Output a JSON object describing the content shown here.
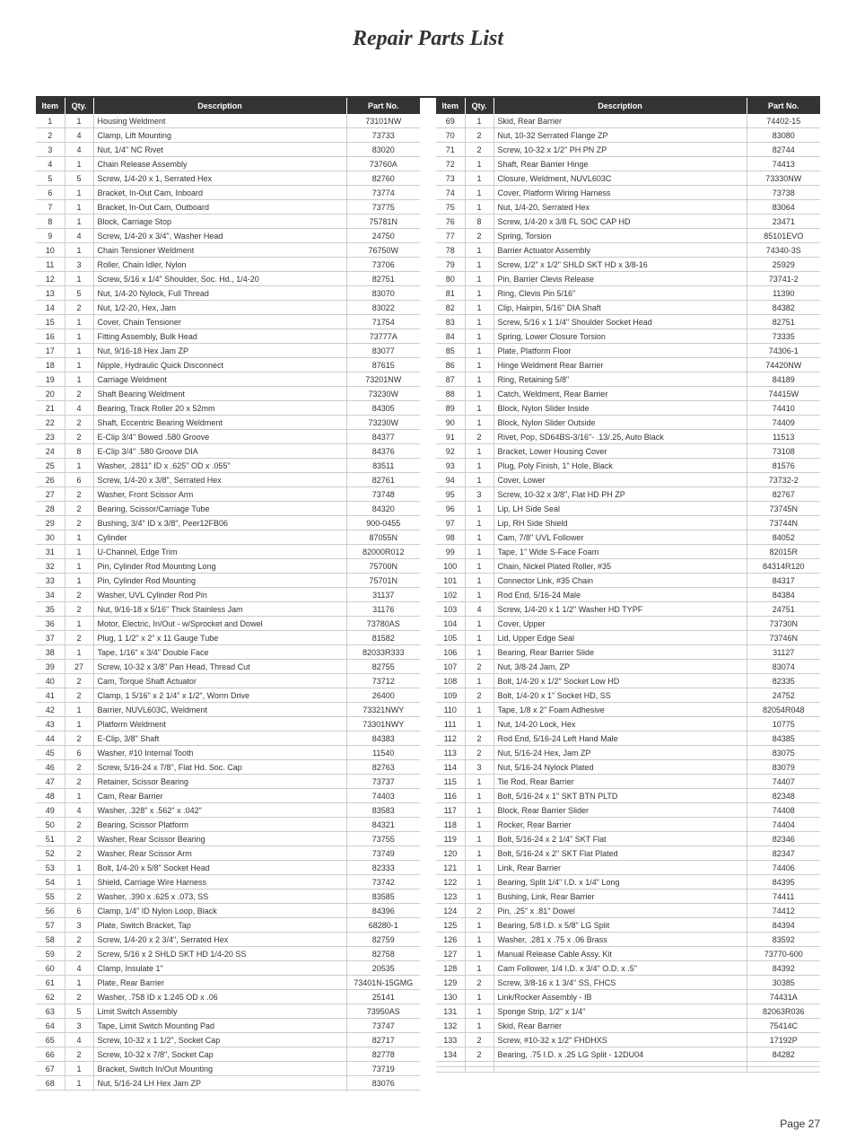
{
  "page_title": "Repair Parts List",
  "page_number": "Page 27",
  "headers": {
    "item": "Item",
    "qty": "Qty.",
    "description": "Description",
    "part_no": "Part No."
  },
  "left": [
    {
      "item": "1",
      "qty": "1",
      "desc": "Housing Weldment",
      "part": "73101NW"
    },
    {
      "item": "2",
      "qty": "4",
      "desc": "Clamp, Lift Mounting",
      "part": "73733"
    },
    {
      "item": "3",
      "qty": "4",
      "desc": "Nut, 1/4\" NC Rivet",
      "part": "83020"
    },
    {
      "item": "4",
      "qty": "1",
      "desc": "Chain Release Assembly",
      "part": "73760A"
    },
    {
      "item": "5",
      "qty": "5",
      "desc": "Screw, 1/4-20 x 1, Serrated Hex",
      "part": "82760"
    },
    {
      "item": "6",
      "qty": "1",
      "desc": "Bracket, In-Out Cam, Inboard",
      "part": "73774"
    },
    {
      "item": "7",
      "qty": "1",
      "desc": "Bracket, In-Out Cam, Outboard",
      "part": "73775"
    },
    {
      "item": "8",
      "qty": "1",
      "desc": "Block, Carriage Stop",
      "part": "75781N"
    },
    {
      "item": "9",
      "qty": "4",
      "desc": "Screw, 1/4-20 x 3/4\", Washer Head",
      "part": "24750"
    },
    {
      "item": "10",
      "qty": "1",
      "desc": "Chain Tensioner Weldment",
      "part": "76750W"
    },
    {
      "item": "11",
      "qty": "3",
      "desc": "Roller, Chain Idler, Nylon",
      "part": "73706"
    },
    {
      "item": "12",
      "qty": "1",
      "desc": "Screw, 5/16 x 1/4\" Shoulder, Soc. Hd., 1/4-20",
      "part": "82751"
    },
    {
      "item": "13",
      "qty": "5",
      "desc": "Nut, 1/4-20 Nylock, Full Thread",
      "part": "83070"
    },
    {
      "item": "14",
      "qty": "2",
      "desc": "Nut, 1/2-20, Hex, Jam",
      "part": "83022"
    },
    {
      "item": "15",
      "qty": "1",
      "desc": "Cover, Chain Tensioner",
      "part": "71754"
    },
    {
      "item": "16",
      "qty": "1",
      "desc": "Fitting Assembly, Bulk Head",
      "part": "73777A"
    },
    {
      "item": "17",
      "qty": "1",
      "desc": "Nut, 9/16-18 Hex Jam ZP",
      "part": "83077"
    },
    {
      "item": "18",
      "qty": "1",
      "desc": "Nipple, Hydraulic Quick Disconnect",
      "part": "87615"
    },
    {
      "item": "19",
      "qty": "1",
      "desc": "Carriage Weldment",
      "part": "73201NW"
    },
    {
      "item": "20",
      "qty": "2",
      "desc": "Shaft Bearing Weldment",
      "part": "73230W"
    },
    {
      "item": "21",
      "qty": "4",
      "desc": "Bearing, Track Roller 20 x 52mm",
      "part": "84305"
    },
    {
      "item": "22",
      "qty": "2",
      "desc": "Shaft, Eccentric Bearing Weldment",
      "part": "73230W"
    },
    {
      "item": "23",
      "qty": "2",
      "desc": "E-Clip 3/4\" Bowed .580 Groove",
      "part": "84377"
    },
    {
      "item": "24",
      "qty": "8",
      "desc": "E-Clip 3/4\" .580 Groove DIA",
      "part": "84376"
    },
    {
      "item": "25",
      "qty": "1",
      "desc": "Washer, .2811\" ID x .625\" OD x .055\"",
      "part": "83511"
    },
    {
      "item": "26",
      "qty": "6",
      "desc": "Screw, 1/4-20 x 3/8\", Serrated Hex",
      "part": "82761"
    },
    {
      "item": "27",
      "qty": "2",
      "desc": "Washer, Front Scissor Arm",
      "part": "73748"
    },
    {
      "item": "28",
      "qty": "2",
      "desc": "Bearing, Scissor/Carriage Tube",
      "part": "84320"
    },
    {
      "item": "29",
      "qty": "2",
      "desc": "Bushing, 3/4\" ID x 3/8\", Peer12FB06",
      "part": "900-0455"
    },
    {
      "item": "30",
      "qty": "1",
      "desc": "Cylinder",
      "part": "87055N"
    },
    {
      "item": "31",
      "qty": "1",
      "desc": "U-Channel, Edge Trim",
      "part": "82000R012"
    },
    {
      "item": "32",
      "qty": "1",
      "desc": "Pin, Cylinder Rod Mounting Long",
      "part": "75700N"
    },
    {
      "item": "33",
      "qty": "1",
      "desc": "Pin, Cylinder Rod Mounting",
      "part": "75701N"
    },
    {
      "item": "34",
      "qty": "2",
      "desc": "Washer, UVL Cylinder Rod Pin",
      "part": "31137"
    },
    {
      "item": "35",
      "qty": "2",
      "desc": "Nut, 9/16-18 x 5/16\" Thick Stainless Jam",
      "part": "31176"
    },
    {
      "item": "36",
      "qty": "1",
      "desc": "Motor, Electric, In/Out - w/Sprocket and Dowel",
      "part": "73780AS"
    },
    {
      "item": "37",
      "qty": "2",
      "desc": "Plug, 1 1/2\" x 2\" x 11 Gauge Tube",
      "part": "81582"
    },
    {
      "item": "38",
      "qty": "1",
      "desc": "Tape, 1/16\" x 3/4\" Double Face",
      "part": "82033R333"
    },
    {
      "item": "39",
      "qty": "27",
      "desc": "Screw, 10-32 x 3/8\" Pan Head, Thread Cut",
      "part": "82755"
    },
    {
      "item": "40",
      "qty": "2",
      "desc": "Cam, Torque Shaft Actuator",
      "part": "73712"
    },
    {
      "item": "41",
      "qty": "2",
      "desc": "Clamp, 1 5/16\" x 2 1/4\" x 1/2\", Worm Drive",
      "part": "26400"
    },
    {
      "item": "42",
      "qty": "1",
      "desc": "Barrier, NUVL603C, Weldment",
      "part": "73321NWY"
    },
    {
      "item": "43",
      "qty": "1",
      "desc": "Platform Weldment",
      "part": "73301NWY"
    },
    {
      "item": "44",
      "qty": "2",
      "desc": "E-Clip, 3/8\" Shaft",
      "part": "84383"
    },
    {
      "item": "45",
      "qty": "6",
      "desc": "Washer, #10 Internal Tooth",
      "part": "11540"
    },
    {
      "item": "46",
      "qty": "2",
      "desc": "Screw, 5/16-24 x 7/8\", Flat Hd. Soc. Cap",
      "part": "82763"
    },
    {
      "item": "47",
      "qty": "2",
      "desc": "Retainer, Scissor Bearing",
      "part": "73737"
    },
    {
      "item": "48",
      "qty": "1",
      "desc": "Cam, Rear Barrier",
      "part": "74403"
    },
    {
      "item": "49",
      "qty": "4",
      "desc": "Washer, .328\" x .562\" x .042\"",
      "part": "83583"
    },
    {
      "item": "50",
      "qty": "2",
      "desc": "Bearing, Scissor Platform",
      "part": "84321"
    },
    {
      "item": "51",
      "qty": "2",
      "desc": "Washer, Rear Scissor Bearing",
      "part": "73755"
    },
    {
      "item": "52",
      "qty": "2",
      "desc": "Washer, Rear Scissor Arm",
      "part": "73749"
    },
    {
      "item": "53",
      "qty": "1",
      "desc": "Bolt, 1/4-20 x 5/8\" Socket Head",
      "part": "82333"
    },
    {
      "item": "54",
      "qty": "1",
      "desc": "Shield, Carriage Wire Harness",
      "part": "73742"
    },
    {
      "item": "55",
      "qty": "2",
      "desc": "Washer, .390 x .625 x .073, SS",
      "part": "83585"
    },
    {
      "item": "56",
      "qty": "6",
      "desc": "Clamp, 1/4\" ID Nylon Loop, Black",
      "part": "84396"
    },
    {
      "item": "57",
      "qty": "3",
      "desc": "Plate, Switch Bracket, Tap",
      "part": "68280-1"
    },
    {
      "item": "58",
      "qty": "2",
      "desc": "Screw, 1/4-20 x 2 3/4\", Serrated Hex",
      "part": "82759"
    },
    {
      "item": "59",
      "qty": "2",
      "desc": "Screw, 5/16 x 2 SHLD SKT HD 1/4-20 SS",
      "part": "82758"
    },
    {
      "item": "60",
      "qty": "4",
      "desc": "Clamp, Insulate 1\"",
      "part": "20535"
    },
    {
      "item": "61",
      "qty": "1",
      "desc": "Plate, Rear Barrier",
      "part": "73401N-15GMG"
    },
    {
      "item": "62",
      "qty": "2",
      "desc": "Washer, .758 ID x 1.245 OD x .06",
      "part": "25141"
    },
    {
      "item": "63",
      "qty": "5",
      "desc": "Limit Switch Assembly",
      "part": "73950AS"
    },
    {
      "item": "64",
      "qty": "3",
      "desc": "Tape, Limit Switch Mounting Pad",
      "part": "73747"
    },
    {
      "item": "65",
      "qty": "4",
      "desc": "Screw, 10-32 x 1 1/2\", Socket Cap",
      "part": "82717"
    },
    {
      "item": "66",
      "qty": "2",
      "desc": "Screw, 10-32 x 7/8\", Socket Cap",
      "part": "82778"
    },
    {
      "item": "67",
      "qty": "1",
      "desc": "Bracket, Switch In/Out Mounting",
      "part": "73719"
    },
    {
      "item": "68",
      "qty": "1",
      "desc": "Nut, 5/16-24 LH Hex Jam ZP",
      "part": "83076"
    }
  ],
  "right": [
    {
      "item": "69",
      "qty": "1",
      "desc": "Skid, Rear Barrier",
      "part": "74402-15"
    },
    {
      "item": "70",
      "qty": "2",
      "desc": "Nut, 10-32 Serrated Flange ZP",
      "part": "83080"
    },
    {
      "item": "71",
      "qty": "2",
      "desc": "Screw, 10-32 x 1/2\" PH PN ZP",
      "part": "82744"
    },
    {
      "item": "72",
      "qty": "1",
      "desc": "Shaft, Rear Barrier Hinge",
      "part": "74413"
    },
    {
      "item": "73",
      "qty": "1",
      "desc": "Closure, Weldment, NUVL603C",
      "part": "73330NW"
    },
    {
      "item": "74",
      "qty": "1",
      "desc": "Cover, Platform Wiring Harness",
      "part": "73738"
    },
    {
      "item": "75",
      "qty": "1",
      "desc": "Nut, 1/4-20, Serrated Hex",
      "part": "83064"
    },
    {
      "item": "76",
      "qty": "8",
      "desc": "Screw, 1/4-20 x 3/8 FL SOC CAP HD",
      "part": "23471"
    },
    {
      "item": "77",
      "qty": "2",
      "desc": "Spring, Torsion",
      "part": "85101EVO"
    },
    {
      "item": "78",
      "qty": "1",
      "desc": "Barrier Actuator Assembly",
      "part": "74340-3S"
    },
    {
      "item": "79",
      "qty": "1",
      "desc": "Screw, 1/2\" x 1/2\" SHLD SKT HD x 3/8-16",
      "part": "25929"
    },
    {
      "item": "80",
      "qty": "1",
      "desc": "Pin, Barrier Clevis Release",
      "part": "73741-2"
    },
    {
      "item": "81",
      "qty": "1",
      "desc": "Ring, Clevis Pin 5/16\"",
      "part": "11390"
    },
    {
      "item": "82",
      "qty": "1",
      "desc": "Clip, Hairpin, 5/16\" DIA Shaft",
      "part": "84382"
    },
    {
      "item": "83",
      "qty": "1",
      "desc": "Screw, 5/16 x 1 1/4\" Shoulder Socket Head",
      "part": "82751"
    },
    {
      "item": "84",
      "qty": "1",
      "desc": "Spring, Lower Closure Torsion",
      "part": "73335"
    },
    {
      "item": "85",
      "qty": "1",
      "desc": "Plate, Platform Floor",
      "part": "74306-1"
    },
    {
      "item": "86",
      "qty": "1",
      "desc": "Hinge Weldment Rear Barrier",
      "part": "74420NW"
    },
    {
      "item": "87",
      "qty": "1",
      "desc": "Ring, Retaining 5/8\"",
      "part": "84189"
    },
    {
      "item": "88",
      "qty": "1",
      "desc": "Catch, Weldment, Rear Barrier",
      "part": "74415W"
    },
    {
      "item": "89",
      "qty": "1",
      "desc": "Block, Nylon Slider Inside",
      "part": "74410"
    },
    {
      "item": "90",
      "qty": "1",
      "desc": "Block, Nylon Slider Outside",
      "part": "74409"
    },
    {
      "item": "91",
      "qty": "2",
      "desc": "Rivet, Pop, SD64BS-3/16\"- .13/.25, Auto Black",
      "part": "11513"
    },
    {
      "item": "92",
      "qty": "1",
      "desc": "Bracket, Lower Housing Cover",
      "part": "73108"
    },
    {
      "item": "93",
      "qty": "1",
      "desc": "Plug, Poly Finish, 1\" Hole, Black",
      "part": "81576"
    },
    {
      "item": "94",
      "qty": "1",
      "desc": "Cover, Lower",
      "part": "73732-2"
    },
    {
      "item": "95",
      "qty": "3",
      "desc": "Screw, 10-32 x 3/8\", Flat HD PH ZP",
      "part": "82767"
    },
    {
      "item": "96",
      "qty": "1",
      "desc": "Lip, LH Side Seal",
      "part": "73745N"
    },
    {
      "item": "97",
      "qty": "1",
      "desc": "Lip, RH Side Shield",
      "part": "73744N"
    },
    {
      "item": "98",
      "qty": "1",
      "desc": "Cam, 7/8\" UVL Follower",
      "part": "84052"
    },
    {
      "item": "99",
      "qty": "1",
      "desc": "Tape, 1\" Wide S-Face Foam",
      "part": "82015R"
    },
    {
      "item": "100",
      "qty": "1",
      "desc": "Chain, Nickel Plated Roller, #35",
      "part": "84314R120"
    },
    {
      "item": "101",
      "qty": "1",
      "desc": "Connector Link, #35 Chain",
      "part": "84317"
    },
    {
      "item": "102",
      "qty": "1",
      "desc": "Rod End, 5/16-24 Male",
      "part": "84384"
    },
    {
      "item": "103",
      "qty": "4",
      "desc": "Screw, 1/4-20 x 1 1/2\" Washer HD TYPF",
      "part": "24751"
    },
    {
      "item": "104",
      "qty": "1",
      "desc": "Cover, Upper",
      "part": "73730N"
    },
    {
      "item": "105",
      "qty": "1",
      "desc": "Lid, Upper Edge Seal",
      "part": "73746N"
    },
    {
      "item": "106",
      "qty": "1",
      "desc": "Bearing, Rear Barrier Slide",
      "part": "31127"
    },
    {
      "item": "107",
      "qty": "2",
      "desc": "Nut, 3/8-24 Jam, ZP",
      "part": "83074"
    },
    {
      "item": "108",
      "qty": "1",
      "desc": "Bolt, 1/4-20 x 1/2\" Socket Low HD",
      "part": "82335"
    },
    {
      "item": "109",
      "qty": "2",
      "desc": "Bolt, 1/4-20 x 1\" Socket HD, SS",
      "part": "24752"
    },
    {
      "item": "110",
      "qty": "1",
      "desc": "Tape, 1/8 x 2\" Foam Adhesive",
      "part": "82054R048"
    },
    {
      "item": "111",
      "qty": "1",
      "desc": "Nut, 1/4-20 Lock, Hex",
      "part": "10775"
    },
    {
      "item": "112",
      "qty": "2",
      "desc": "Rod End, 5/16-24 Left Hand Male",
      "part": "84385"
    },
    {
      "item": "113",
      "qty": "2",
      "desc": "Nut, 5/16-24 Hex, Jam ZP",
      "part": "83075"
    },
    {
      "item": "114",
      "qty": "3",
      "desc": "Nut, 5/16-24 Nylock Plated",
      "part": "83079"
    },
    {
      "item": "115",
      "qty": "1",
      "desc": "Tie Rod, Rear Barrier",
      "part": "74407"
    },
    {
      "item": "116",
      "qty": "1",
      "desc": "Bolt, 5/16-24 x 1\" SKT BTN PLTD",
      "part": "82348"
    },
    {
      "item": "117",
      "qty": "1",
      "desc": "Block, Rear Barrier Slider",
      "part": "74408"
    },
    {
      "item": "118",
      "qty": "1",
      "desc": "Rocker, Rear Barrier",
      "part": "74404"
    },
    {
      "item": "119",
      "qty": "1",
      "desc": "Bolt, 5/16-24 x 2 1/4\" SKT Flat",
      "part": "82346"
    },
    {
      "item": "120",
      "qty": "1",
      "desc": "Bolt, 5/16-24 x 2\" SKT Flat Plated",
      "part": "82347"
    },
    {
      "item": "121",
      "qty": "1",
      "desc": "Link, Rear Barrier",
      "part": "74406"
    },
    {
      "item": "122",
      "qty": "1",
      "desc": "Bearing, Split 1/4\" I.D. x 1/4\" Long",
      "part": "84395"
    },
    {
      "item": "123",
      "qty": "1",
      "desc": "Bushing, Link, Rear Barrier",
      "part": "74411"
    },
    {
      "item": "124",
      "qty": "2",
      "desc": "Pin, .25\" x .81\" Dowel",
      "part": "74412"
    },
    {
      "item": "125",
      "qty": "1",
      "desc": "Bearing, 5/8 I.D. x 5/8\" LG Split",
      "part": "84394"
    },
    {
      "item": "126",
      "qty": "1",
      "desc": "Washer, .281 x .75 x .06 Brass",
      "part": "83592"
    },
    {
      "item": "127",
      "qty": "1",
      "desc": "Manual Release Cable Assy. Kit",
      "part": "73770-600"
    },
    {
      "item": "128",
      "qty": "1",
      "desc": "Cam Follower, 1/4 I.D. x 3/4\" O.D. x .5\"",
      "part": "84392"
    },
    {
      "item": "129",
      "qty": "2",
      "desc": "Screw, 3/8-16 x 1 3/4\" SS, FHCS",
      "part": "30385"
    },
    {
      "item": "130",
      "qty": "1",
      "desc": "Link/Rocker Assembly - IB",
      "part": "74431A"
    },
    {
      "item": "131",
      "qty": "1",
      "desc": "Sponge Strip, 1/2\" x 1/4\"",
      "part": "82063R036"
    },
    {
      "item": "132",
      "qty": "1",
      "desc": "Skid, Rear Barrier",
      "part": "75414C"
    },
    {
      "item": "133",
      "qty": "2",
      "desc": "Screw, #10-32 x 1/2\" FHDHXS",
      "part": "17192P"
    },
    {
      "item": "134",
      "qty": "2",
      "desc": "Bearing, .75 I.D. x .25 LG Split - 12DU04",
      "part": "84282"
    },
    {
      "item": "",
      "qty": "",
      "desc": "",
      "part": ""
    },
    {
      "item": "",
      "qty": "",
      "desc": "",
      "part": ""
    }
  ]
}
